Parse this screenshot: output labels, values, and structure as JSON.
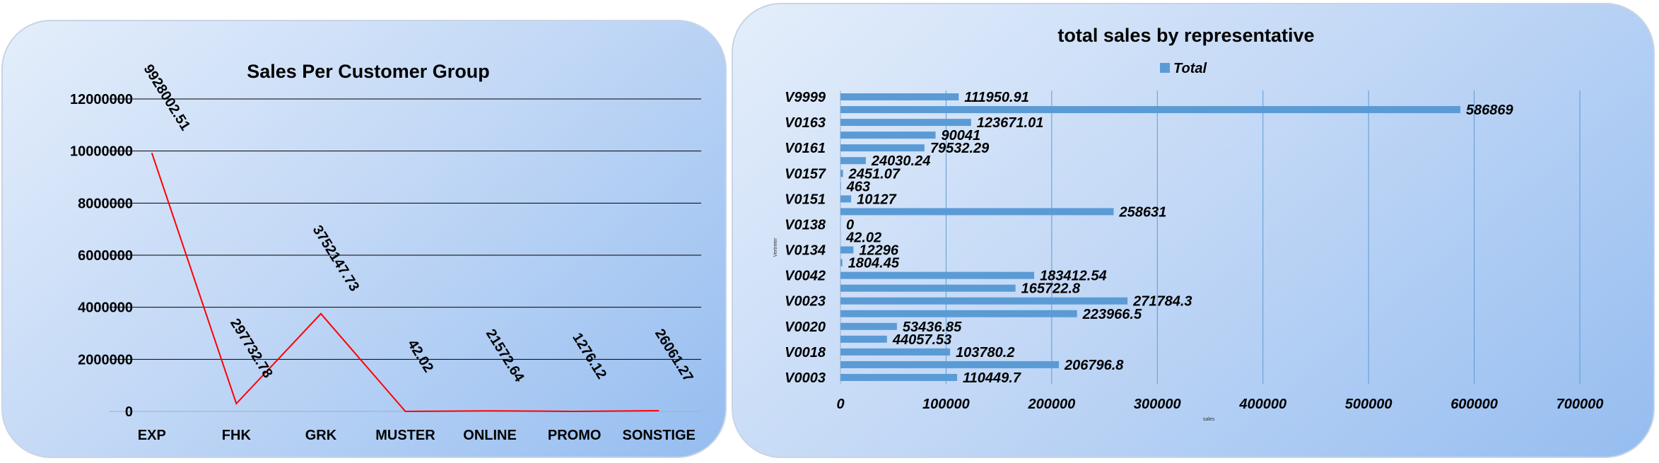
{
  "chart_data": [
    {
      "type": "line",
      "title": "Sales Per Customer Group",
      "categories": [
        "EXP",
        "FHK",
        "GRK",
        "MUSTER",
        "ONLINE",
        "PROMO",
        "SONSTIGE"
      ],
      "values": [
        9928002.51,
        297732.78,
        3752147.73,
        42.02,
        21572.64,
        1276.12,
        26061.27
      ],
      "value_labels": [
        "9928002.51",
        "297732.78",
        "3752147.73",
        "42.02",
        "21572.64",
        "1276.12",
        "26061.27"
      ],
      "yticks": [
        "0",
        "2000000",
        "4000000",
        "6000000",
        "8000000",
        "10000000",
        "12000000"
      ],
      "ylim": [
        0,
        12000000
      ],
      "line_color": "#ff0000",
      "grid": "horizontal",
      "legend": "none"
    },
    {
      "type": "bar",
      "orientation": "horizontal",
      "title": "total sales by representative",
      "legend": [
        "Total"
      ],
      "legend_placement": "top",
      "xlabel": "sales",
      "ylabel": "Vertreter",
      "xlim": [
        0,
        700000
      ],
      "xticks": [
        "0",
        "100000",
        "200000",
        "300000",
        "400000",
        "500000",
        "600000",
        "700000"
      ],
      "bar_color": "#5b9bd5",
      "grid": "vertical",
      "category_labels": [
        "V0003",
        "V0018",
        "V0020",
        "V0023",
        "V0042",
        "V0134",
        "V0138",
        "V0151",
        "V0157",
        "V0161",
        "V0163",
        "V9999"
      ],
      "values": [
        110449.7,
        206796.8,
        103780.2,
        44057.53,
        53436.85,
        223966.5,
        271784.3,
        165722.8,
        183412.54,
        1804.45,
        12296,
        42.02,
        0,
        258631,
        10127,
        463,
        2451.07,
        24030.24,
        79532.29,
        90041,
        123671.01,
        586869,
        111950.91
      ],
      "value_labels": [
        "110449.7",
        "206796.8",
        "103780.2",
        "44057.53",
        "53436.85",
        "223966.5",
        "271784.3",
        "165722.8",
        "183412.54",
        "1804.45",
        "12296",
        "42.02",
        "0",
        "258631",
        "10127",
        "463",
        "2451.07",
        "24030.24",
        "79532.29",
        "90041",
        "123671.01",
        "586869",
        "111950.91"
      ]
    }
  ]
}
